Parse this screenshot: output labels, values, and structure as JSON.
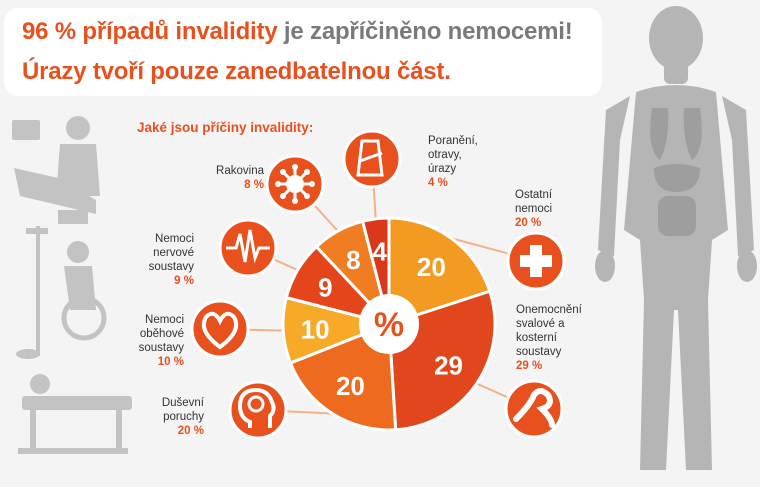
{
  "headline": {
    "line1_accent": "96 % případů invalidity",
    "line1_rest": " je zapříčiněno nemocemi!",
    "line2": "Úrazy tvoří pouze zanedbatelnou část."
  },
  "subtitle": "Jaké jsou příčiny invalidity:",
  "center_label": "%",
  "colors": {
    "accent": "#e8501e",
    "grey_text": "#7a7a7a",
    "silhouette": "#b3b3b3"
  },
  "chart_data": {
    "type": "pie",
    "title": "Jaké jsou příčiny invalidity:",
    "unit": "%",
    "slices": [
      {
        "label": "Ostatní nemoci",
        "value": 20,
        "percent_label": "20 %",
        "color": "#f39a22",
        "icon": "medical-cross-icon"
      },
      {
        "label": "Onemocnění svalové a kosterní soustavy",
        "value": 29,
        "percent_label": "29 %",
        "color": "#e2461d",
        "icon": "bone-joint-icon"
      },
      {
        "label": "Duševní poruchy",
        "value": 20,
        "percent_label": "20 %",
        "color": "#ee6a1f",
        "icon": "head-brain-icon"
      },
      {
        "label": "Nemoci oběhové soustavy",
        "value": 10,
        "percent_label": "10 %",
        "color": "#f7a928",
        "icon": "heart-icon"
      },
      {
        "label": "Nemoci nervové soustavy",
        "value": 9,
        "percent_label": "9 %",
        "color": "#e4451b",
        "icon": "nerve-pulse-icon"
      },
      {
        "label": "Rakovina",
        "value": 8,
        "percent_label": "8 %",
        "color": "#f07d22",
        "icon": "virus-icon"
      },
      {
        "label": "Poranění, otravy, úrazy",
        "value": 4,
        "percent_label": "4 %",
        "color": "#d9381a",
        "icon": "injured-arm-icon"
      }
    ]
  }
}
